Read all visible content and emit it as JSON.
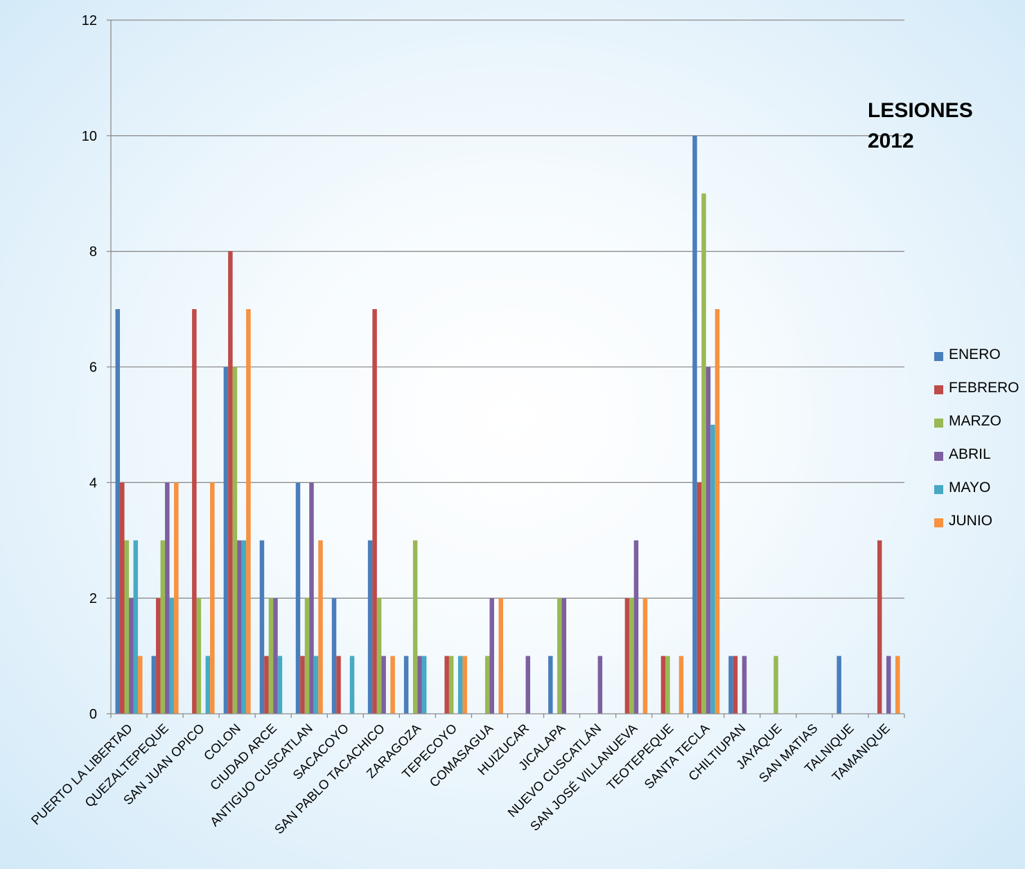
{
  "chart_data": {
    "type": "bar",
    "title": "LESIONES\n2012",
    "xlabel": "",
    "ylabel": "",
    "ylim": [
      0,
      12
    ],
    "yticks": [
      0,
      2,
      4,
      6,
      8,
      10,
      12
    ],
    "grid": true,
    "legend_position": "right",
    "categories": [
      "PUERTO LA LIBERTAD",
      "QUEZALTEPEQUE",
      "SAN JUAN OPICO",
      "COLON",
      "CIUDAD ARCE",
      "ANTIGUO CUSCATLAN",
      "SACACOYO",
      "SAN PABLO TACACHICO",
      "ZARAGOZA",
      "TEPECOYO",
      "COMASAGUA",
      "HUIZUCAR",
      "JICALAPA",
      "NUEVO CUSCATLÁN",
      "SAN JOSÉ VILLANUEVA",
      "TEOTEPEQUE",
      "SANTA TECLA",
      "CHILTIUPAN",
      "JAYAQUE",
      "SAN MATIAS",
      "TALNIQUE",
      "TAMANIQUE"
    ],
    "series": [
      {
        "name": "ENERO",
        "color": "#4a7ebb",
        "values": [
          7,
          1,
          0,
          6,
          3,
          4,
          2,
          3,
          1,
          0,
          0,
          0,
          1,
          0,
          0,
          0,
          10,
          1,
          0,
          0,
          1,
          0
        ]
      },
      {
        "name": "FEBRERO",
        "color": "#be4b48",
        "values": [
          4,
          2,
          7,
          8,
          1,
          1,
          1,
          7,
          0,
          1,
          0,
          0,
          0,
          0,
          2,
          1,
          4,
          1,
          0,
          0,
          0,
          3
        ]
      },
      {
        "name": "MARZO",
        "color": "#98b954",
        "values": [
          3,
          3,
          2,
          6,
          2,
          2,
          0,
          2,
          3,
          1,
          1,
          0,
          2,
          0,
          2,
          1,
          9,
          0,
          1,
          0,
          0,
          0
        ]
      },
      {
        "name": "ABRIL",
        "color": "#7d60a0",
        "values": [
          2,
          4,
          0,
          3,
          2,
          4,
          0,
          1,
          1,
          0,
          2,
          1,
          2,
          1,
          3,
          0,
          6,
          1,
          0,
          0,
          0,
          1
        ]
      },
      {
        "name": "MAYO",
        "color": "#46aac5",
        "values": [
          3,
          2,
          1,
          3,
          1,
          1,
          1,
          0,
          1,
          1,
          0,
          0,
          0,
          0,
          0,
          0,
          5,
          0,
          0,
          0,
          0,
          0
        ]
      },
      {
        "name": "JUNIO",
        "color": "#f69240",
        "values": [
          1,
          4,
          4,
          7,
          0,
          3,
          0,
          1,
          0,
          1,
          2,
          0,
          0,
          0,
          2,
          1,
          7,
          0,
          0,
          0,
          0,
          1
        ]
      }
    ]
  }
}
